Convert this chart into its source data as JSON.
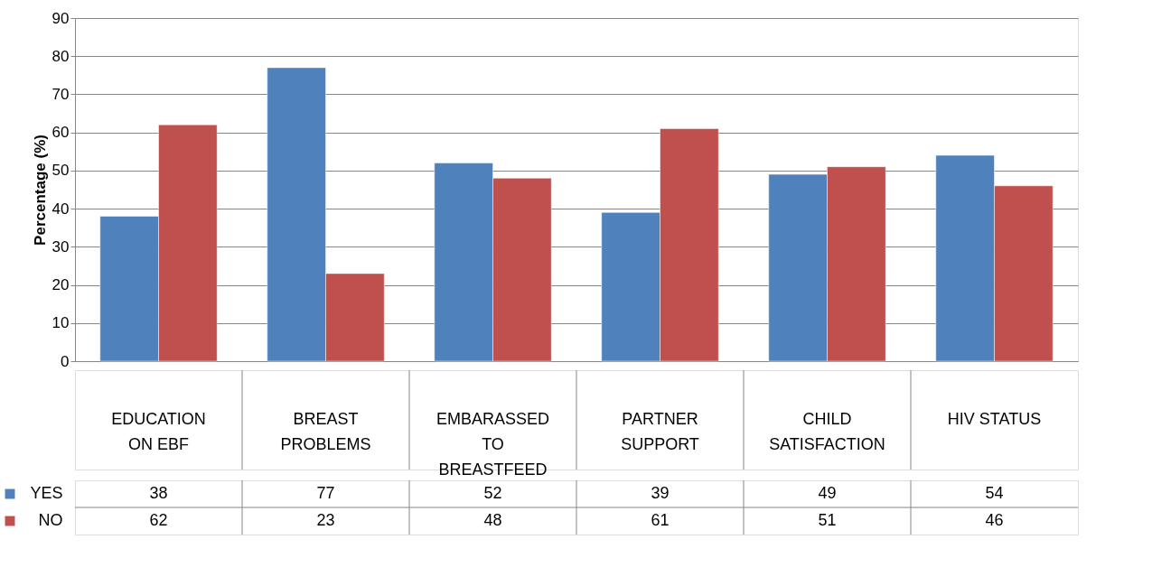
{
  "chart_data": {
    "type": "bar",
    "ylabel": "Percentage (%)",
    "categories": [
      "EDUCATION ON EBF",
      "BREAST PROBLEMS",
      "EMBARASSED TO BREASTFEED",
      "PARTNER SUPPORT",
      "CHILD SATISFACTION",
      "HIV STATUS"
    ],
    "series": [
      {
        "name": "YES",
        "color": "#4f81bd",
        "values": [
          38,
          77,
          52,
          39,
          49,
          54
        ]
      },
      {
        "name": "NO",
        "color": "#c0504d",
        "values": [
          62,
          23,
          48,
          61,
          51,
          46
        ]
      }
    ],
    "ylim": [
      0,
      90
    ],
    "yticks": [
      0,
      10,
      20,
      30,
      40,
      50,
      60,
      70,
      80,
      90
    ],
    "grid": "y",
    "data_labels": true,
    "legend": "bottom left"
  }
}
